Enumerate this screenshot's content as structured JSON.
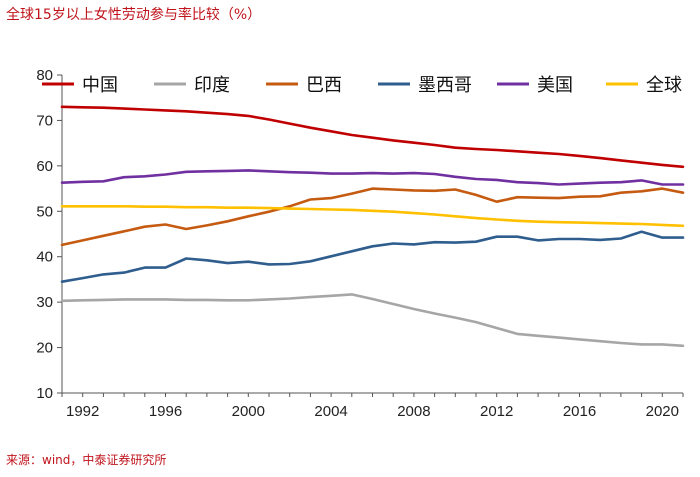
{
  "title": "全球15岁以上女性劳动参与率比较（%）",
  "source": "来源：wind，中泰证券研究所",
  "chart_data": {
    "type": "line",
    "title": "全球15岁以上女性劳动参与率比较（%）",
    "xlabel": "",
    "ylabel": "",
    "ylim": [
      10,
      80
    ],
    "yticks": [
      10,
      20,
      30,
      40,
      50,
      60,
      70,
      80
    ],
    "xlim": [
      1991,
      2021
    ],
    "xticks": [
      1992,
      1996,
      2000,
      2004,
      2008,
      2012,
      2016,
      2020
    ],
    "legend_position": "top",
    "x": [
      1991,
      1992,
      1993,
      1994,
      1995,
      1996,
      1997,
      1998,
      1999,
      2000,
      2001,
      2002,
      2003,
      2004,
      2005,
      2006,
      2007,
      2008,
      2009,
      2010,
      2011,
      2012,
      2013,
      2014,
      2015,
      2016,
      2017,
      2018,
      2019,
      2020,
      2021
    ],
    "series": [
      {
        "name": "中国",
        "color": "#c00000",
        "values": [
          73.0,
          72.9,
          72.8,
          72.6,
          72.4,
          72.2,
          72.0,
          71.7,
          71.4,
          71.0,
          70.2,
          69.3,
          68.4,
          67.6,
          66.8,
          66.2,
          65.6,
          65.1,
          64.6,
          64.0,
          63.7,
          63.5,
          63.2,
          62.9,
          62.6,
          62.2,
          61.7,
          61.2,
          60.7,
          60.2,
          59.8
        ]
      },
      {
        "name": "印度",
        "color": "#a6a6a6",
        "values": [
          30.3,
          30.4,
          30.5,
          30.6,
          30.6,
          30.6,
          30.5,
          30.5,
          30.4,
          30.4,
          30.6,
          30.8,
          31.1,
          31.4,
          31.7,
          30.7,
          29.6,
          28.5,
          27.5,
          26.6,
          25.6,
          24.3,
          23.0,
          22.6,
          22.2,
          21.8,
          21.4,
          21.0,
          20.7,
          20.7,
          20.4
        ]
      },
      {
        "name": "巴西",
        "color": "#c55a11",
        "values": [
          42.6,
          43.6,
          44.6,
          45.6,
          46.6,
          47.1,
          46.1,
          46.9,
          47.8,
          48.9,
          49.9,
          51.1,
          52.6,
          52.9,
          53.9,
          55.0,
          54.8,
          54.6,
          54.5,
          54.8,
          53.6,
          52.1,
          53.1,
          53.0,
          52.9,
          53.2,
          53.3,
          54.1,
          54.4,
          55.0,
          54.1
        ]
      },
      {
        "name": "墨西哥",
        "color": "#2e5d8e",
        "values": [
          34.5,
          35.3,
          36.1,
          36.5,
          37.6,
          37.6,
          39.6,
          39.2,
          38.6,
          38.9,
          38.3,
          38.4,
          39.0,
          40.1,
          41.2,
          42.3,
          42.9,
          42.7,
          43.2,
          43.1,
          43.3,
          44.4,
          44.4,
          43.6,
          43.9,
          43.9,
          43.7,
          44.0,
          45.5,
          44.2,
          44.2
        ]
      },
      {
        "name": "美国",
        "color": "#7030a0",
        "values": [
          56.3,
          56.5,
          56.6,
          57.5,
          57.7,
          58.1,
          58.7,
          58.8,
          58.9,
          59.0,
          58.8,
          58.6,
          58.5,
          58.3,
          58.3,
          58.4,
          58.3,
          58.4,
          58.2,
          57.6,
          57.1,
          56.9,
          56.4,
          56.2,
          55.9,
          56.1,
          56.3,
          56.4,
          56.8,
          55.9,
          55.9
        ]
      },
      {
        "name": "全球",
        "color": "#ffc000",
        "values": [
          51.1,
          51.1,
          51.1,
          51.1,
          51.0,
          51.0,
          50.9,
          50.9,
          50.8,
          50.8,
          50.7,
          50.6,
          50.5,
          50.4,
          50.3,
          50.1,
          49.9,
          49.6,
          49.3,
          48.9,
          48.5,
          48.2,
          47.9,
          47.7,
          47.6,
          47.5,
          47.4,
          47.3,
          47.2,
          47.0,
          46.8
        ]
      }
    ]
  }
}
